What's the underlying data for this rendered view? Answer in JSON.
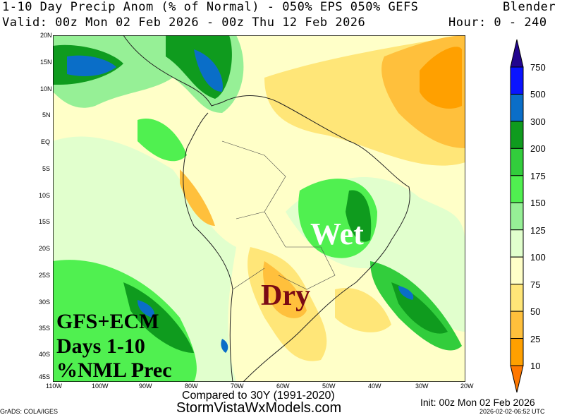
{
  "header": {
    "title": "1-10 Day Precip Anom (% of Normal) - 050% EPS 050% GEFS",
    "blender": "Blender",
    "valid": "Valid: 00z Mon 02 Feb 2026 - 00z Thu 12 Feb 2026",
    "hour": "Hour: 0 - 240"
  },
  "map": {
    "lat_ticks": [
      "20N",
      "15N",
      "10N",
      "5N",
      "EQ",
      "5S",
      "10S",
      "15S",
      "20S",
      "25S",
      "30S",
      "35S",
      "40S",
      "45S"
    ],
    "lon_ticks": [
      "110W",
      "100W",
      "90W",
      "80W",
      "70W",
      "60W",
      "50W",
      "40W",
      "30W",
      "20W"
    ],
    "annotations": {
      "wet": "Wet",
      "dry": "Dry",
      "models": "GFS+ECM",
      "days": "Days 1-10",
      "nml": "%NML Prec"
    }
  },
  "colorbar": {
    "labels": [
      "750",
      "500",
      "300",
      "200",
      "175",
      "150",
      "125",
      "100",
      "75",
      "50",
      "25",
      "10"
    ],
    "colors": {
      "above_750": "#22058e",
      "500_750": "#0a14ff",
      "300_500": "#0a6ec8",
      "200_300": "#0f9b1e",
      "175_200": "#32cd3c",
      "150_175": "#50f050",
      "125_150": "#96f096",
      "100_125": "#e1ffcd",
      "75_100": "#ffffc8",
      "50_75": "#ffe678",
      "25_50": "#ffc03c",
      "10_25": "#ffa000",
      "below_10": "#ff7800"
    }
  },
  "footer": {
    "compared": "Compared to 30Y (1991-2020)",
    "site": "StormVistaWxModels.com",
    "init": "Init: 00z Mon 02 Feb 2026",
    "grads": "GrADS: COLA/IGES",
    "timestamp": "2026-02-02-06:52 UTC"
  }
}
